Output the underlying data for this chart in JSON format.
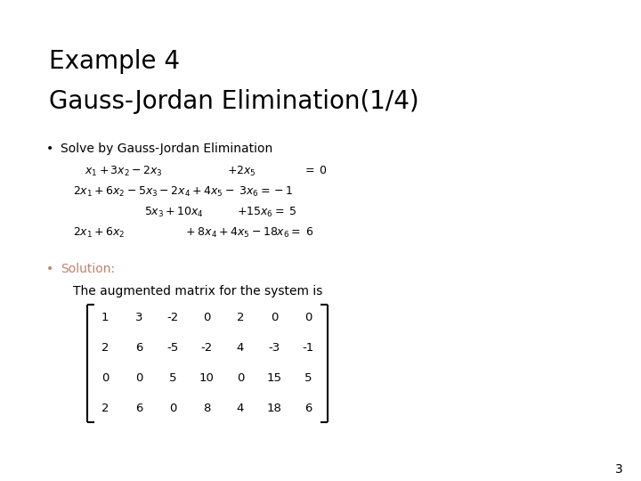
{
  "title_line1": "Example 4",
  "title_line2": "Gauss-Jordan Elimination(1/4)",
  "bullet1": "Solve by Gauss-Jordan Elimination",
  "bullet2_label": "Solution:",
  "bullet2_text": "The augmented matrix for the system is",
  "matrix": [
    [
      1,
      3,
      -2,
      0,
      2,
      0,
      0
    ],
    [
      2,
      6,
      -5,
      -2,
      4,
      -3,
      -1
    ],
    [
      0,
      0,
      5,
      10,
      0,
      15,
      5
    ],
    [
      2,
      6,
      0,
      8,
      4,
      18,
      6
    ]
  ],
  "solution_color": "#C0826A",
  "title_color": "#000000",
  "text_color": "#000000",
  "bg_color": "#ffffff",
  "page_number": "3",
  "title_fontsize": 20,
  "bullet_fontsize": 10,
  "eq_fontsize": 9,
  "mat_fontsize": 9.5
}
